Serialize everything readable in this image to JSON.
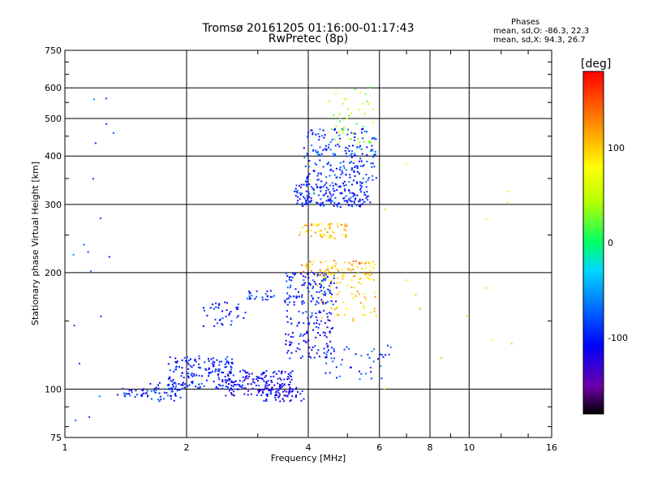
{
  "header": {
    "title_line1": "Tromsø 20161205 01:16:00-01:17:43",
    "title_line2": "RwPretec (8p)"
  },
  "stats": {
    "heading": "Phases",
    "o_line": "mean, sd,O: -86.3, 22.3",
    "x_line": "mean, sd,X:  94.3, 26.7"
  },
  "colorbar": {
    "label": "[deg]",
    "range": [
      -180,
      180
    ],
    "ticks": [
      100,
      0,
      -100
    ],
    "tick_labels": [
      "100",
      "0",
      "-100"
    ]
  },
  "chart_data": {
    "type": "scatter",
    "xscale": "log",
    "yscale": "log",
    "xlim": [
      1,
      16
    ],
    "ylim": [
      75,
      750
    ],
    "xlabel": "Frequency [MHz]",
    "ylabel": "Stationary phase Virtual Height [km]",
    "xticks": [
      1,
      2,
      4,
      6,
      8,
      10,
      16
    ],
    "xtick_labels": [
      "1",
      "2",
      "4",
      "6",
      "8",
      "10",
      "16"
    ],
    "yticks": [
      75,
      100,
      200,
      300,
      400,
      500,
      600,
      750
    ],
    "ytick_labels": [
      "75",
      "100",
      "200",
      "300",
      "400",
      "500",
      "600",
      "750"
    ],
    "grid": true,
    "point_clusters": [
      {
        "x": [
          1.35,
          1.6
        ],
        "y": [
          95,
          101
        ],
        "phase": -100,
        "count": 25
      },
      {
        "x": [
          1.6,
          1.95
        ],
        "y": [
          93,
          104
        ],
        "phase": -95,
        "count": 45
      },
      {
        "x": [
          1.8,
          2.6
        ],
        "y": [
          100,
          122
        ],
        "phase": -100,
        "count": 170
      },
      {
        "x": [
          2.5,
          3.7
        ],
        "y": [
          96,
          112
        ],
        "phase": -110,
        "count": 170
      },
      {
        "x": [
          3.0,
          3.9
        ],
        "y": [
          93,
          101
        ],
        "phase": -115,
        "count": 55
      },
      {
        "x": [
          2.2,
          2.8
        ],
        "y": [
          145,
          168
        ],
        "phase": -100,
        "count": 40
      },
      {
        "x": [
          2.8,
          3.3
        ],
        "y": [
          170,
          180
        ],
        "phase": -90,
        "count": 25
      },
      {
        "x": [
          3.5,
          4.6
        ],
        "y": [
          120,
          160
        ],
        "phase": -105,
        "count": 110
      },
      {
        "x": [
          3.5,
          4.7
        ],
        "y": [
          165,
          200
        ],
        "phase": -100,
        "count": 120
      },
      {
        "x": [
          4.2,
          5.9
        ],
        "y": [
          150,
          200
        ],
        "phase": 90,
        "count": 70
      },
      {
        "x": [
          3.8,
          5.9
        ],
        "y": [
          195,
          215
        ],
        "phase": 110,
        "count": 70
      },
      {
        "x": [
          3.8,
          5.0
        ],
        "y": [
          245,
          268
        ],
        "phase": 105,
        "count": 55
      },
      {
        "x": [
          3.7,
          5.7
        ],
        "y": [
          295,
          340
        ],
        "phase": -100,
        "count": 180
      },
      {
        "x": [
          3.9,
          5.9
        ],
        "y": [
          340,
          470
        ],
        "phase": -90,
        "count": 200
      },
      {
        "x": [
          4.5,
          5.8
        ],
        "y": [
          430,
          620
        ],
        "phase": 40,
        "count": 45
      },
      {
        "x": [
          4.4,
          6.4
        ],
        "y": [
          105,
          130
        ],
        "phase": -85,
        "count": 45
      },
      {
        "x": [
          1.05,
          1.4
        ],
        "y": [
          80,
          630
        ],
        "phase": -70,
        "count": 18
      },
      {
        "x": [
          6.0,
          14.0
        ],
        "y": [
          100,
          420
        ],
        "phase": 80,
        "count": 14
      }
    ]
  }
}
